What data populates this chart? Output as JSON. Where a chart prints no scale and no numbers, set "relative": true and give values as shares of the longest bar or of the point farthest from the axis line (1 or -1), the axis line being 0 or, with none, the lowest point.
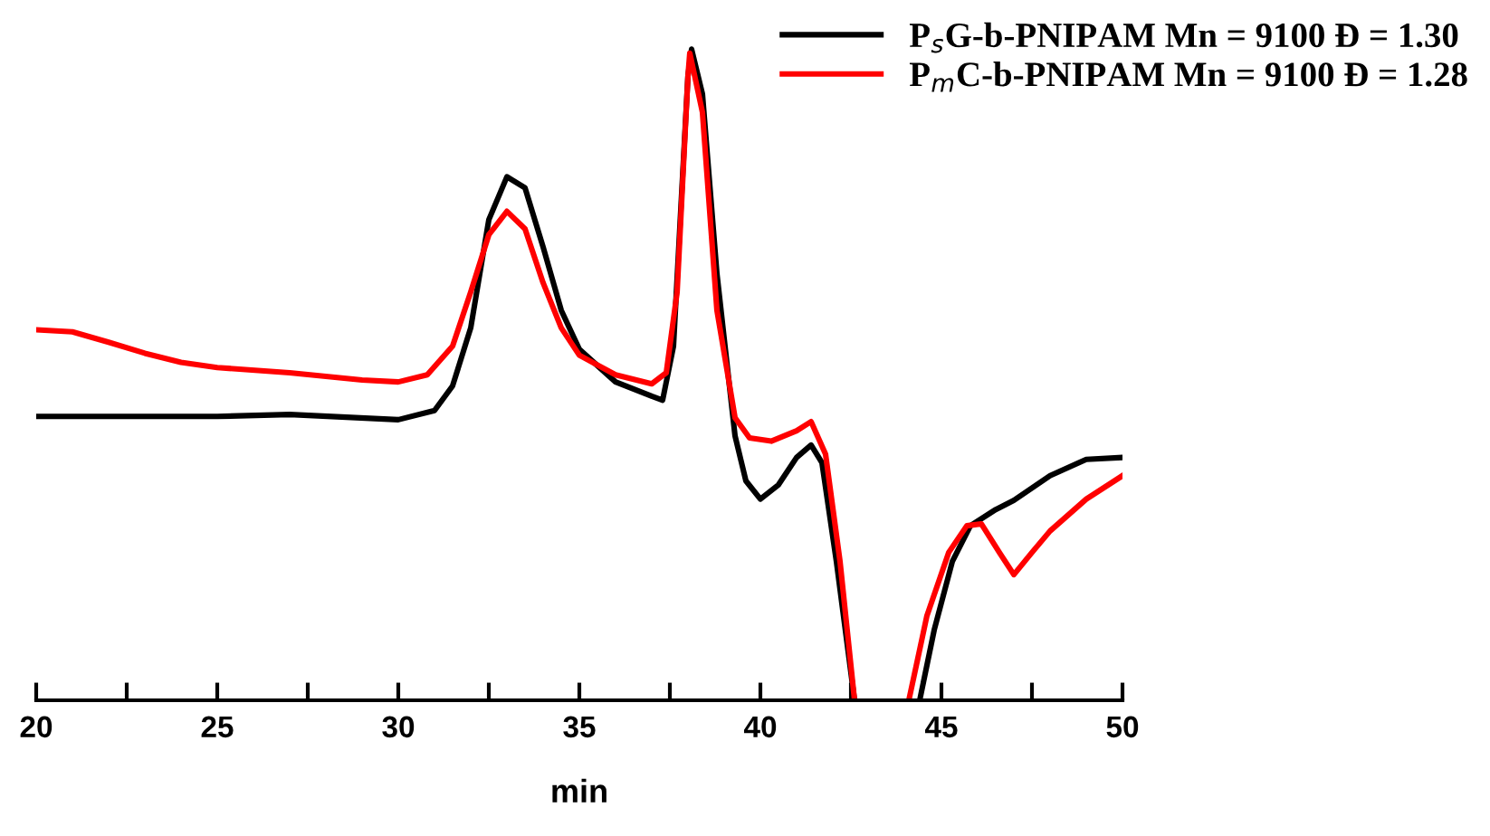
{
  "chart_data": {
    "type": "line",
    "relative": true,
    "xlabel": "min",
    "xlim": [
      20,
      50
    ],
    "xticks": [
      20,
      {
        "value": 22.5,
        "label": null
      },
      25,
      {
        "value": 27.5,
        "label": null
      },
      30,
      {
        "value": 32.5,
        "label": null
      },
      35,
      {
        "value": 37.5,
        "label": null
      },
      40,
      {
        "value": 42.5,
        "label": null
      },
      45,
      {
        "value": 47.5,
        "label": null
      },
      50
    ],
    "legend": "top right",
    "grid": false,
    "marker": "none",
    "line_style": "solid",
    "series": [
      {
        "name": "P$_{s}$G-b-PNIPAM Mn = 9100 Đ = 1.30",
        "color": "#000000",
        "x": [
          20,
          25,
          27,
          30,
          31,
          31.5,
          32,
          32.5,
          33,
          33.5,
          34,
          34.5,
          35,
          36,
          37,
          37.3,
          37.6,
          38,
          38.1,
          38.4,
          38.8,
          39.3,
          39.6,
          40,
          40.5,
          41,
          41.4,
          41.7,
          42.1,
          42.6,
          43.5,
          44.4,
          44.8,
          45.3,
          45.8,
          46.5,
          47,
          48,
          49,
          50
        ],
        "values": [
          0.436,
          0.436,
          0.439,
          0.431,
          0.445,
          0.483,
          0.572,
          0.738,
          0.804,
          0.787,
          0.696,
          0.599,
          0.539,
          0.489,
          0.467,
          0.461,
          0.544,
          0.959,
          1.0,
          0.931,
          0.655,
          0.406,
          0.337,
          0.309,
          0.331,
          0.373,
          0.392,
          0.365,
          0.213,
          0,
          null,
          0,
          0.108,
          0.213,
          0.268,
          0.293,
          0.307,
          0.345,
          0.37,
          0.373
        ]
      },
      {
        "name": "P$_{m}$C-b-PNIPAM Mn = 9100 Đ = 1.28",
        "color": "#ff0000",
        "x": [
          20,
          21,
          22,
          23,
          24,
          25,
          27,
          29,
          30,
          30.8,
          31.5,
          32,
          32.5,
          33,
          33.5,
          34,
          34.5,
          35,
          36,
          37,
          37.4,
          37.7,
          38,
          38.05,
          38.4,
          38.8,
          39.3,
          39.7,
          40.3,
          41,
          41.4,
          41.8,
          42.2,
          42.6,
          43.5,
          44.1,
          44.6,
          45.2,
          45.7,
          46.1,
          46.6,
          47,
          47.5,
          48,
          49,
          50
        ],
        "values": [
          0.569,
          0.566,
          0.55,
          0.533,
          0.519,
          0.511,
          0.503,
          0.492,
          0.489,
          0.5,
          0.544,
          0.627,
          0.715,
          0.751,
          0.724,
          0.641,
          0.572,
          0.53,
          0.5,
          0.486,
          0.503,
          0.627,
          0.959,
          0.994,
          0.903,
          0.599,
          0.434,
          0.403,
          0.398,
          0.414,
          0.428,
          0.378,
          0.213,
          0,
          null,
          0,
          0.13,
          0.227,
          0.268,
          0.271,
          0.227,
          0.193,
          0.227,
          0.26,
          0.309,
          0.345
        ]
      }
    ]
  }
}
